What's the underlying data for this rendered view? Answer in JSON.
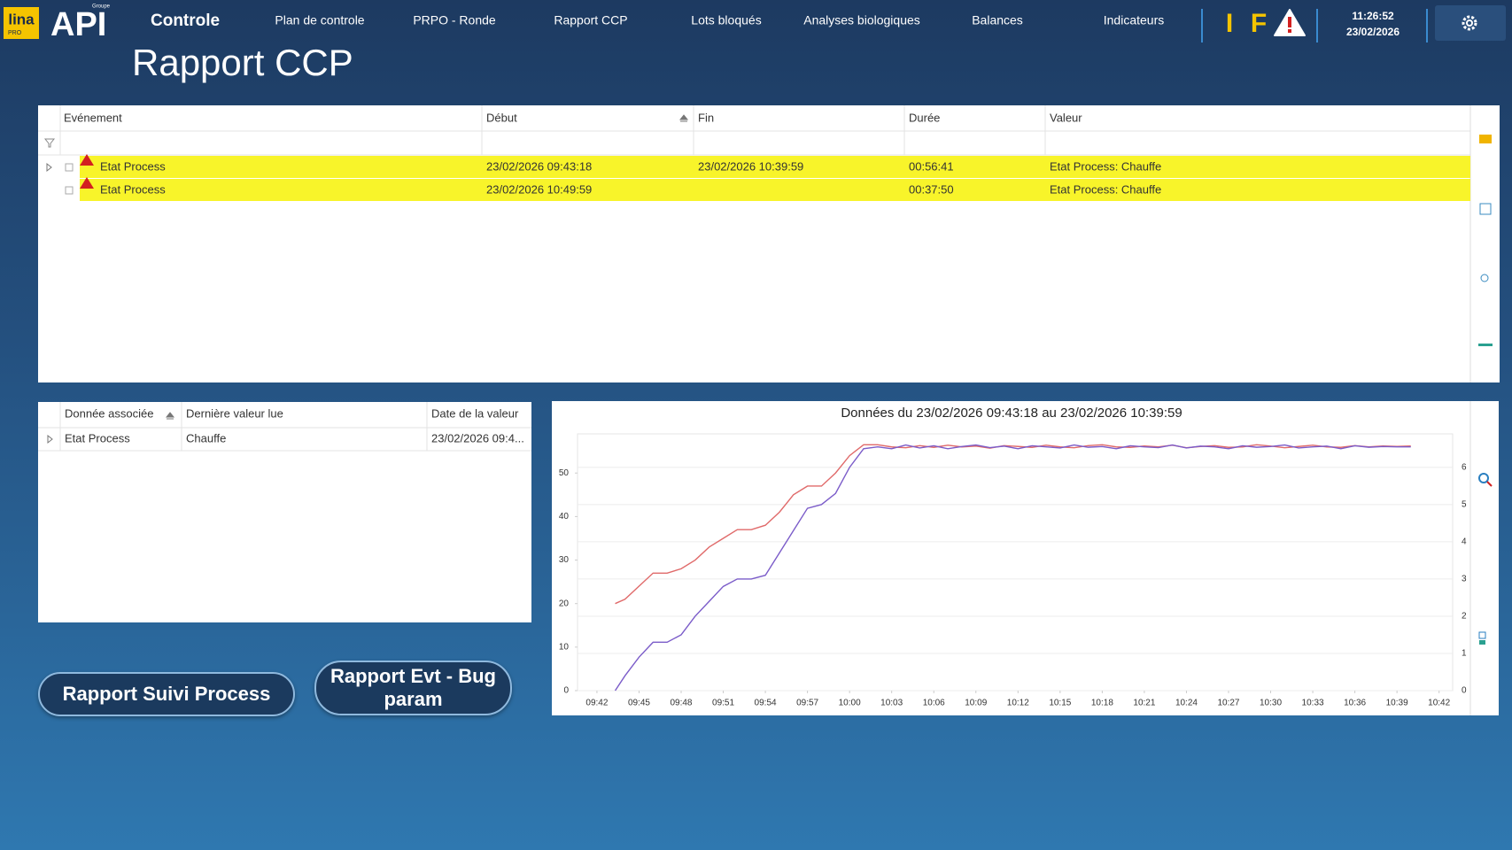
{
  "header": {
    "logo": "lina",
    "logo_sub": "PRO",
    "brand": "API",
    "brand_sub": "Groupe",
    "module": "Controle",
    "nav": [
      "Plan de controle",
      "PRPO - Ronde",
      "Rapport CCP",
      "Lots bloqués",
      "Analyses biologiques",
      "Balances",
      "Indicateurs"
    ],
    "indicators": [
      "I",
      "F"
    ],
    "time": "11:26:52",
    "date": "23/02/2026"
  },
  "title": "Rapport CCP",
  "events_table": {
    "columns": [
      "Evénement",
      "Début",
      "Fin",
      "Durée",
      "Valeur"
    ],
    "rows": [
      [
        "Etat Process",
        "23/02/2026 09:43:18",
        "23/02/2026 10:39:59",
        "00:56:41",
        "Etat Process: Chauffe"
      ],
      [
        "Etat Process",
        "23/02/2026 10:49:59",
        null,
        "00:37:50",
        "Etat Process: Chauffe"
      ]
    ]
  },
  "data_table": {
    "columns": [
      "Donnée associée",
      "Dernière valeur lue",
      "Date de la valeur"
    ],
    "rows": [
      [
        "Etat Process",
        "Chauffe",
        "23/02/2026 09:4..."
      ]
    ]
  },
  "chart_data": {
    "type": "line",
    "title": "Données du 23/02/2026 09:43:18 au 23/02/2026 10:39:59",
    "x": [
      "09:43:18",
      "09:44",
      "09:45",
      "09:46",
      "09:47",
      "09:48",
      "09:49",
      "09:50",
      "09:51",
      "09:52",
      "09:53",
      "09:54",
      "09:55",
      "09:56",
      "09:57",
      "09:58",
      "09:59",
      "10:00",
      "10:01",
      "10:02",
      "10:03",
      "10:04",
      "10:05",
      "10:06",
      "10:07",
      "10:08",
      "10:09",
      "10:10",
      "10:11",
      "10:12",
      "10:13",
      "10:14",
      "10:15",
      "10:16",
      "10:17",
      "10:18",
      "10:19",
      "10:20",
      "10:21",
      "10:22",
      "10:23",
      "10:24",
      "10:25",
      "10:26",
      "10:27",
      "10:28",
      "10:29",
      "10:30",
      "10:31",
      "10:32",
      "10:33",
      "10:34",
      "10:35",
      "10:36",
      "10:37",
      "10:38",
      "10:39",
      "10:39:59"
    ],
    "xlim": [
      "09:40:37",
      "10:42:58"
    ],
    "xticks": [
      "09:42",
      "09:45",
      "09:48",
      "09:51",
      "09:54",
      "09:57",
      "10:00",
      "10:03",
      "10:06",
      "10:09",
      "10:12",
      "10:15",
      "10:18",
      "10:21",
      "10:24",
      "10:27",
      "10:30",
      "10:33",
      "10:36",
      "10:39",
      "10:42"
    ],
    "ylim": [
      0,
      59
    ],
    "yticks": [
      0,
      10,
      20,
      30,
      40,
      50
    ],
    "y2lim": [
      0,
      6.9
    ],
    "y2ticks": [
      0,
      1,
      2,
      3,
      4,
      5,
      6
    ],
    "grid": true,
    "series": [
      {
        "color": "#e06a6a",
        "values": [
          20,
          21,
          24,
          27,
          27,
          28,
          30,
          33,
          35,
          37,
          37,
          38,
          41,
          45,
          47,
          47,
          50,
          54,
          56.5,
          56.5,
          56,
          55.8,
          56.3,
          55.9,
          56.4,
          56,
          56.2,
          55.7,
          56.3,
          56.1,
          55.9,
          56.4,
          56,
          55.8,
          56.3,
          56.5,
          56,
          55.9,
          56.2,
          56,
          56.4,
          55.8,
          56.1,
          56.3,
          55.9,
          56,
          56.5,
          56.2,
          55.8,
          56.1,
          56.4,
          56,
          55.9,
          56.3,
          56,
          56.2,
          56.1,
          56.2
        ]
      },
      {
        "color": "#7b5cc9",
        "axis": "y2",
        "values": [
          0,
          0.4,
          0.9,
          1.3,
          1.3,
          1.5,
          2,
          2.4,
          2.8,
          3,
          3,
          3.1,
          3.7,
          4.3,
          4.9,
          5,
          5.3,
          6,
          6.5,
          6.55,
          6.5,
          6.6,
          6.52,
          6.58,
          6.5,
          6.56,
          6.6,
          6.53,
          6.57,
          6.5,
          6.58,
          6.55,
          6.52,
          6.6,
          6.54,
          6.56,
          6.5,
          6.58,
          6.55,
          6.53,
          6.6,
          6.52,
          6.57,
          6.55,
          6.5,
          6.58,
          6.54,
          6.56,
          6.6,
          6.52,
          6.55,
          6.57,
          6.5,
          6.58,
          6.54,
          6.56,
          6.55,
          6.55
        ]
      }
    ]
  },
  "buttons": [
    "Rapport Suivi Process",
    "Rapport Evt - Bug param"
  ]
}
